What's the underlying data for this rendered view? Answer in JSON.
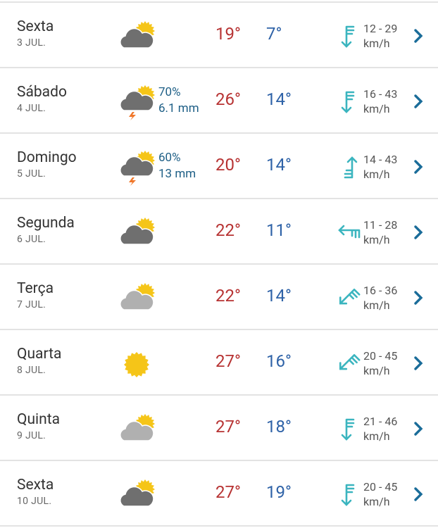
{
  "colors": {
    "max": "#b73333",
    "min": "#2e62a7",
    "wind": "#3bb5bf",
    "chevron": "#1a6c99"
  },
  "days": [
    {
      "day": "Sexta",
      "date": "3 JUL.",
      "icon": "partly-cloudy-dark",
      "precip_chance": "",
      "precip_amount": "",
      "max": "19°",
      "min": "7°",
      "wind_dir": "S",
      "wind": "12 - 29",
      "wind_unit": "km/h"
    },
    {
      "day": "Sábado",
      "date": "4 JUL.",
      "icon": "thunderstorm",
      "precip_chance": "70%",
      "precip_amount": "6.1 mm",
      "max": "26°",
      "min": "14°",
      "wind_dir": "S",
      "wind": "16 - 43",
      "wind_unit": "km/h"
    },
    {
      "day": "Domingo",
      "date": "5 JUL.",
      "icon": "thunderstorm",
      "precip_chance": "60%",
      "precip_amount": "13 mm",
      "max": "20°",
      "min": "14°",
      "wind_dir": "N",
      "wind": "14 - 43",
      "wind_unit": "km/h"
    },
    {
      "day": "Segunda",
      "date": "6 JUL.",
      "icon": "partly-cloudy-dark",
      "precip_chance": "",
      "precip_amount": "",
      "max": "22°",
      "min": "11°",
      "wind_dir": "W",
      "wind": "11 - 28",
      "wind_unit": "km/h"
    },
    {
      "day": "Terça",
      "date": "7 JUL.",
      "icon": "partly-cloudy-light",
      "precip_chance": "",
      "precip_amount": "",
      "max": "22°",
      "min": "14°",
      "wind_dir": "SW",
      "wind": "16 - 36",
      "wind_unit": "km/h"
    },
    {
      "day": "Quarta",
      "date": "8 JUL.",
      "icon": "sunny",
      "precip_chance": "",
      "precip_amount": "",
      "max": "27°",
      "min": "16°",
      "wind_dir": "SW",
      "wind": "20 - 45",
      "wind_unit": "km/h"
    },
    {
      "day": "Quinta",
      "date": "9 JUL.",
      "icon": "partly-cloudy-light",
      "precip_chance": "",
      "precip_amount": "",
      "max": "27°",
      "min": "18°",
      "wind_dir": "S",
      "wind": "21 - 46",
      "wind_unit": "km/h"
    },
    {
      "day": "Sexta",
      "date": "10 JUL.",
      "icon": "partly-cloudy-dark",
      "precip_chance": "",
      "precip_amount": "",
      "max": "27°",
      "min": "19°",
      "wind_dir": "S",
      "wind": "20 - 45",
      "wind_unit": "km/h"
    }
  ]
}
